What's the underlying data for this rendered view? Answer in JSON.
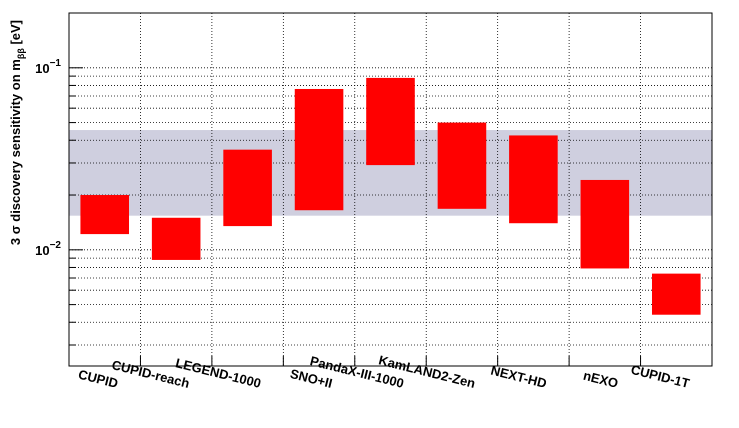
{
  "chart_data": {
    "type": "bar",
    "subtype": "floating-range",
    "ylabel": "3 σ discovery sensitivity on m_ββ [eV]",
    "ylabel_parts": {
      "main": "3 σ discovery sensitivity on m",
      "sub": "ββ",
      "unit": " [eV]"
    },
    "yscale": "log",
    "ylim": [
      0.0023,
      0.2
    ],
    "ytick_labels": [
      {
        "value": 0.01,
        "base": "10",
        "exp": "−2"
      },
      {
        "value": 0.1,
        "base": "10",
        "exp": "−1"
      }
    ],
    "grid": true,
    "band": {
      "low": 0.0154,
      "high": 0.0455,
      "color": "#cfcfdf"
    },
    "bar_color": "#ff0000",
    "categories": [
      "CUPID",
      "CUPID-reach",
      "LEGEND-1000",
      "SNO+II",
      "PandaX-III-1000",
      "KamLAND2-Zen",
      "NEXT-HD",
      "nEXO",
      "CUPID-1T"
    ],
    "series": [
      {
        "low": [
          0.0122,
          0.0088,
          0.0135,
          0.0165,
          0.0292,
          0.0168,
          0.014,
          0.0079,
          0.0044
        ],
        "high": [
          0.02,
          0.015,
          0.0355,
          0.0765,
          0.088,
          0.05,
          0.0425,
          0.0242,
          0.0074
        ]
      }
    ]
  }
}
